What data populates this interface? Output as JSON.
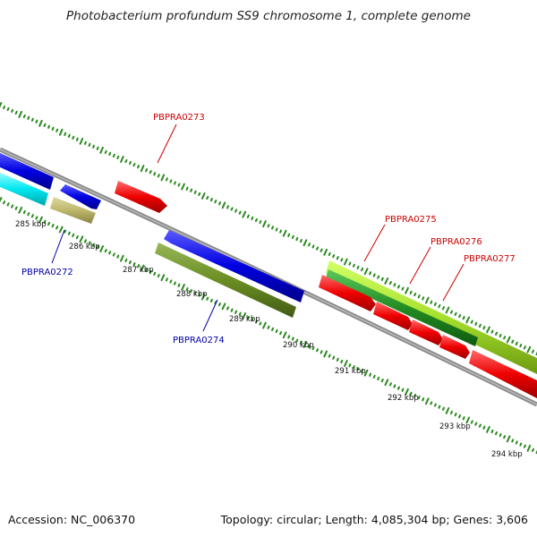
{
  "title": "Photobacterium profundum SS9 chromosome 1, complete genome",
  "accession_text": "Accession: NC_006370",
  "stats_text": "Topology: circular; Length: 4,085,304 bp; Genes: 3,606",
  "colors": {
    "backbone": "#8a8a8a",
    "tick": "#2a8a1e",
    "label_forward": "#cc0000",
    "label_reverse": "#0000aa"
  },
  "kbp_labels": [
    "285 kbp",
    "286 kbp",
    "287 kbp",
    "288 kbp",
    "289 kbp",
    "290 kbp",
    "291 kbp",
    "292 kbp",
    "293 kbp",
    "294 kbp"
  ],
  "gene_labels": [
    "PBPRA0273",
    "PBPRA0272",
    "PBPRA0274",
    "PBPRA0275",
    "PBPRA0276",
    "PBPRA0277"
  ],
  "genes": [
    {
      "strand": "reverse",
      "color": "#0000dd"
    },
    {
      "strand": "reverse",
      "color": "#00e5ee"
    },
    {
      "strand": "reverse",
      "color": "#0000dd"
    },
    {
      "strand": "reverse",
      "color": "#bdb76b"
    },
    {
      "strand": "forward",
      "color": "#ee0000"
    },
    {
      "strand": "reverse",
      "color": "#0000dd"
    },
    {
      "strand": "reverse",
      "color": "#6b8e23"
    },
    {
      "strand": "forward",
      "color": "#9acd32"
    },
    {
      "strand": "forward",
      "color": "#228b22"
    },
    {
      "strand": "forward",
      "color": "#ee0000"
    }
  ]
}
